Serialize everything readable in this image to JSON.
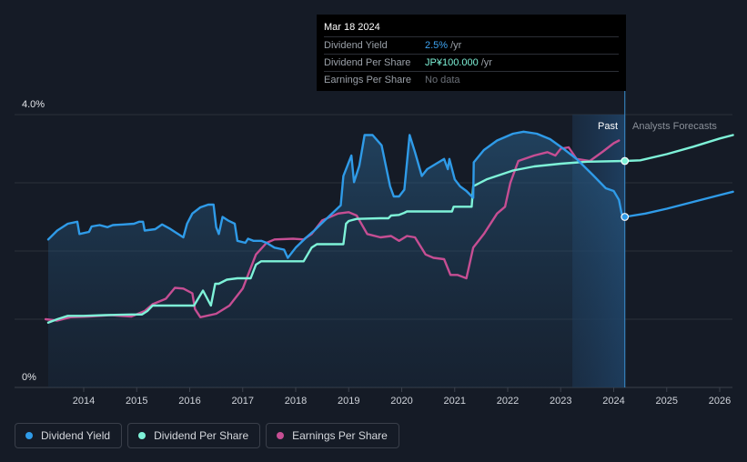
{
  "tooltip": {
    "date": "Mar 18 2024",
    "rows": [
      {
        "label": "Dividend Yield",
        "value": "2.5%",
        "unit": "/yr"
      },
      {
        "label": "Dividend Per Share",
        "value": "JP¥100.000",
        "unit": "/yr"
      },
      {
        "label": "Earnings Per Share",
        "value": "No data",
        "unit": ""
      }
    ]
  },
  "legend": [
    {
      "label": "Dividend Yield",
      "color": "#2f9be8"
    },
    {
      "label": "Dividend Per Share",
      "color": "#7ef2d8"
    },
    {
      "label": "Earnings Per Share",
      "color": "#c64e93"
    }
  ],
  "chart_data": {
    "type": "line",
    "title": "",
    "y_tick_labels": [
      "4.0%",
      "0%"
    ],
    "ylim": [
      0,
      4.0
    ],
    "xlim": [
      2013.0,
      2026.25
    ],
    "x_ticks": [
      2014,
      2015,
      2016,
      2017,
      2018,
      2019,
      2020,
      2021,
      2022,
      2023,
      2024,
      2025,
      2026
    ],
    "past_label": "Past",
    "forecast_label": "Analysts Forecasts",
    "marker_x": 2024.21,
    "forecast_shade_start": 2023.22,
    "series": [
      {
        "name": "Dividend Yield",
        "color": "#2f9be8",
        "points": [
          [
            2013.33,
            2.17
          ],
          [
            2013.5,
            2.3
          ],
          [
            2013.7,
            2.4
          ],
          [
            2013.88,
            2.43
          ],
          [
            2013.92,
            2.25
          ],
          [
            2014.1,
            2.28
          ],
          [
            2014.15,
            2.36
          ],
          [
            2014.3,
            2.38
          ],
          [
            2014.45,
            2.35
          ],
          [
            2014.55,
            2.38
          ],
          [
            2014.75,
            2.39
          ],
          [
            2014.95,
            2.4
          ],
          [
            2015.05,
            2.43
          ],
          [
            2015.12,
            2.43
          ],
          [
            2015.15,
            2.3
          ],
          [
            2015.35,
            2.32
          ],
          [
            2015.48,
            2.39
          ],
          [
            2015.62,
            2.33
          ],
          [
            2015.78,
            2.25
          ],
          [
            2015.88,
            2.2
          ],
          [
            2015.95,
            2.4
          ],
          [
            2016.05,
            2.55
          ],
          [
            2016.2,
            2.64
          ],
          [
            2016.35,
            2.68
          ],
          [
            2016.45,
            2.68
          ],
          [
            2016.5,
            2.35
          ],
          [
            2016.55,
            2.25
          ],
          [
            2016.62,
            2.5
          ],
          [
            2016.72,
            2.45
          ],
          [
            2016.85,
            2.4
          ],
          [
            2016.9,
            2.15
          ],
          [
            2017.05,
            2.12
          ],
          [
            2017.1,
            2.18
          ],
          [
            2017.2,
            2.15
          ],
          [
            2017.35,
            2.15
          ],
          [
            2017.45,
            2.12
          ],
          [
            2017.6,
            2.05
          ],
          [
            2017.78,
            2.02
          ],
          [
            2017.85,
            1.9
          ],
          [
            2018.0,
            2.05
          ],
          [
            2018.2,
            2.2
          ],
          [
            2018.35,
            2.3
          ],
          [
            2018.55,
            2.45
          ],
          [
            2018.85,
            2.67
          ],
          [
            2018.9,
            3.1
          ],
          [
            2019.05,
            3.4
          ],
          [
            2019.1,
            3.01
          ],
          [
            2019.2,
            3.25
          ],
          [
            2019.3,
            3.7
          ],
          [
            2019.45,
            3.7
          ],
          [
            2019.62,
            3.55
          ],
          [
            2019.78,
            2.95
          ],
          [
            2019.85,
            2.8
          ],
          [
            2019.95,
            2.8
          ],
          [
            2020.05,
            2.9
          ],
          [
            2020.15,
            3.7
          ],
          [
            2020.25,
            3.45
          ],
          [
            2020.38,
            3.1
          ],
          [
            2020.48,
            3.2
          ],
          [
            2020.65,
            3.28
          ],
          [
            2020.8,
            3.35
          ],
          [
            2020.87,
            3.2
          ],
          [
            2020.9,
            3.35
          ],
          [
            2021.0,
            3.05
          ],
          [
            2021.1,
            2.95
          ],
          [
            2021.22,
            2.88
          ],
          [
            2021.35,
            2.78
          ],
          [
            2021.36,
            3.3
          ],
          [
            2021.55,
            3.48
          ],
          [
            2021.8,
            3.62
          ],
          [
            2022.1,
            3.72
          ],
          [
            2022.3,
            3.75
          ],
          [
            2022.55,
            3.72
          ],
          [
            2022.8,
            3.64
          ],
          [
            2023.05,
            3.5
          ],
          [
            2023.3,
            3.35
          ],
          [
            2023.6,
            3.12
          ],
          [
            2023.85,
            2.92
          ],
          [
            2024.0,
            2.88
          ],
          [
            2024.1,
            2.75
          ],
          [
            2024.15,
            2.55
          ],
          [
            2024.21,
            2.5
          ],
          [
            2024.6,
            2.55
          ],
          [
            2025.0,
            2.62
          ],
          [
            2025.5,
            2.72
          ],
          [
            2026.0,
            2.82
          ],
          [
            2026.25,
            2.87
          ]
        ]
      },
      {
        "name": "Dividend Per Share",
        "color": "#7ef2d8",
        "points": [
          [
            2013.33,
            0.95
          ],
          [
            2013.5,
            1.0
          ],
          [
            2013.7,
            1.05
          ],
          [
            2014.0,
            1.05
          ],
          [
            2014.4,
            1.06
          ],
          [
            2014.9,
            1.07
          ],
          [
            2015.1,
            1.07
          ],
          [
            2015.2,
            1.12
          ],
          [
            2015.3,
            1.2
          ],
          [
            2016.05,
            1.2
          ],
          [
            2016.08,
            1.2
          ],
          [
            2016.25,
            1.42
          ],
          [
            2016.4,
            1.2
          ],
          [
            2016.48,
            1.52
          ],
          [
            2016.55,
            1.52
          ],
          [
            2016.7,
            1.58
          ],
          [
            2016.9,
            1.6
          ],
          [
            2017.15,
            1.6
          ],
          [
            2017.25,
            1.8
          ],
          [
            2017.35,
            1.85
          ],
          [
            2018.15,
            1.85
          ],
          [
            2018.3,
            2.05
          ],
          [
            2018.4,
            2.1
          ],
          [
            2018.9,
            2.1
          ],
          [
            2018.95,
            2.4
          ],
          [
            2019.0,
            2.44
          ],
          [
            2019.15,
            2.47
          ],
          [
            2019.6,
            2.48
          ],
          [
            2019.75,
            2.48
          ],
          [
            2019.8,
            2.52
          ],
          [
            2019.95,
            2.53
          ],
          [
            2020.05,
            2.56
          ],
          [
            2020.1,
            2.58
          ],
          [
            2020.95,
            2.58
          ],
          [
            2020.98,
            2.65
          ],
          [
            2021.32,
            2.65
          ],
          [
            2021.35,
            2.95
          ],
          [
            2021.6,
            3.05
          ],
          [
            2022.1,
            3.18
          ],
          [
            2022.5,
            3.24
          ],
          [
            2023.0,
            3.28
          ],
          [
            2023.5,
            3.31
          ],
          [
            2024.21,
            3.32
          ],
          [
            2024.5,
            3.33
          ],
          [
            2025.0,
            3.42
          ],
          [
            2025.5,
            3.53
          ],
          [
            2026.0,
            3.65
          ],
          [
            2026.25,
            3.7
          ]
        ]
      },
      {
        "name": "Earnings Per Share",
        "color": "#c64e93",
        "points": [
          [
            2013.28,
            1.0
          ],
          [
            2013.5,
            0.98
          ],
          [
            2013.75,
            1.03
          ],
          [
            2014.1,
            1.04
          ],
          [
            2014.5,
            1.06
          ],
          [
            2014.9,
            1.04
          ],
          [
            2015.15,
            1.12
          ],
          [
            2015.3,
            1.22
          ],
          [
            2015.55,
            1.3
          ],
          [
            2015.72,
            1.46
          ],
          [
            2015.88,
            1.45
          ],
          [
            2016.05,
            1.38
          ],
          [
            2016.1,
            1.15
          ],
          [
            2016.2,
            1.03
          ],
          [
            2016.5,
            1.08
          ],
          [
            2016.75,
            1.2
          ],
          [
            2017.0,
            1.45
          ],
          [
            2017.25,
            1.95
          ],
          [
            2017.45,
            2.12
          ],
          [
            2017.6,
            2.17
          ],
          [
            2017.95,
            2.18
          ],
          [
            2018.15,
            2.17
          ],
          [
            2018.3,
            2.25
          ],
          [
            2018.5,
            2.45
          ],
          [
            2018.8,
            2.55
          ],
          [
            2019.0,
            2.57
          ],
          [
            2019.15,
            2.52
          ],
          [
            2019.35,
            2.25
          ],
          [
            2019.6,
            2.2
          ],
          [
            2019.8,
            2.22
          ],
          [
            2019.95,
            2.15
          ],
          [
            2020.1,
            2.22
          ],
          [
            2020.25,
            2.2
          ],
          [
            2020.45,
            1.95
          ],
          [
            2020.6,
            1.9
          ],
          [
            2020.8,
            1.88
          ],
          [
            2020.92,
            1.65
          ],
          [
            2021.05,
            1.65
          ],
          [
            2021.22,
            1.6
          ],
          [
            2021.35,
            2.05
          ],
          [
            2021.55,
            2.25
          ],
          [
            2021.8,
            2.55
          ],
          [
            2021.95,
            2.65
          ],
          [
            2022.05,
            3.0
          ],
          [
            2022.2,
            3.32
          ],
          [
            2022.5,
            3.4
          ],
          [
            2022.75,
            3.45
          ],
          [
            2022.9,
            3.4
          ],
          [
            2023.0,
            3.5
          ],
          [
            2023.15,
            3.52
          ],
          [
            2023.3,
            3.35
          ],
          [
            2023.55,
            3.32
          ],
          [
            2023.8,
            3.46
          ],
          [
            2024.0,
            3.58
          ],
          [
            2024.1,
            3.62
          ]
        ]
      }
    ]
  }
}
